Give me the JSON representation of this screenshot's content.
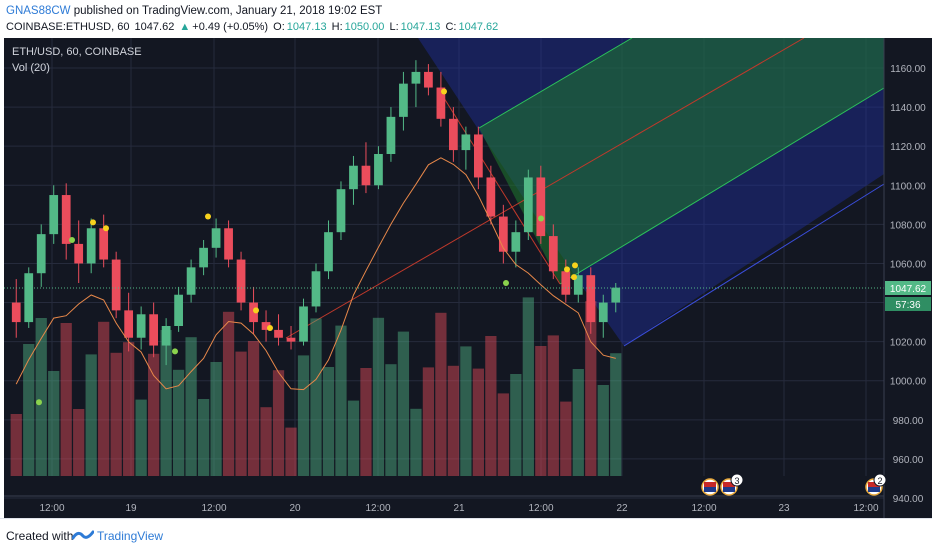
{
  "header": {
    "username": "GNAS88CW",
    "published_text": " published on TradingView.com, January 21, 2018 19:02 EST",
    "symbol": "COINBASE:ETHUSD, 60",
    "last": "1047.62",
    "change_arrow": "▲",
    "change": "+0.49 (+0.05%)",
    "o_label": "O:",
    "o_value": "1047.13",
    "h_label": "H:",
    "h_value": "1050.00",
    "l_label": "L:",
    "l_value": "1047.13",
    "c_label": "C:",
    "c_value": "1047.62"
  },
  "legend": {
    "symbol_line": "ETH/USD, 60, COINBASE",
    "volume_line": "Vol (20)"
  },
  "price_axis": {
    "labels": [
      "1160.00",
      "1140.00",
      "1120.00",
      "1100.00",
      "1080.00",
      "1060.00",
      "1040.00",
      "1020.00",
      "1000.00",
      "980.00",
      "960.00",
      "940.00"
    ],
    "last_price_tag": "1047.62",
    "countdown_tag": "57:36"
  },
  "time_axis": {
    "labels": [
      "12:00",
      "19",
      "12:00",
      "20",
      "12:00",
      "21",
      "12:00",
      "22",
      "12:00",
      "23",
      "12:00"
    ]
  },
  "event_badges": [
    "3",
    "2"
  ],
  "footer": {
    "created_with": "Created with",
    "brand": "TradingView"
  },
  "colors": {
    "background": "#131722",
    "up": "#53b987",
    "down": "#eb4d5c",
    "grid": "#262b3c",
    "last_price": "#53b987",
    "channel_blue": "#1e3bd6",
    "channel_green": "#1f8a3a",
    "ma_line": "#e8884a",
    "dots_yellow": "#f7d21d",
    "dots_green": "#8bd34d"
  },
  "chart_data": {
    "type": "candlestick",
    "symbol": "ETH/USD",
    "interval": "60",
    "exchange": "COINBASE",
    "ylim": [
      940,
      1170
    ],
    "price_ticks": [
      940,
      960,
      980,
      1000,
      1020,
      1040,
      1060,
      1080,
      1100,
      1120,
      1140,
      1160
    ],
    "last_price": 1047.62,
    "x_labels": [
      "12:00",
      "19",
      "12:00",
      "20",
      "12:00",
      "21",
      "12:00",
      "22",
      "12:00",
      "23",
      "12:00"
    ],
    "candles": [
      {
        "o": 1040,
        "h": 1052,
        "l": 1022,
        "c": 1030
      },
      {
        "o": 1030,
        "h": 1058,
        "l": 1027,
        "c": 1055
      },
      {
        "o": 1055,
        "h": 1080,
        "l": 1048,
        "c": 1075
      },
      {
        "o": 1075,
        "h": 1100,
        "l": 1070,
        "c": 1095
      },
      {
        "o": 1095,
        "h": 1101,
        "l": 1062,
        "c": 1070
      },
      {
        "o": 1070,
        "h": 1082,
        "l": 1050,
        "c": 1060
      },
      {
        "o": 1060,
        "h": 1083,
        "l": 1055,
        "c": 1078
      },
      {
        "o": 1078,
        "h": 1085,
        "l": 1058,
        "c": 1062
      },
      {
        "o": 1062,
        "h": 1066,
        "l": 1032,
        "c": 1036
      },
      {
        "o": 1036,
        "h": 1045,
        "l": 1015,
        "c": 1022
      },
      {
        "o": 1022,
        "h": 1038,
        "l": 1016,
        "c": 1034
      },
      {
        "o": 1034,
        "h": 1040,
        "l": 1012,
        "c": 1018
      },
      {
        "o": 1018,
        "h": 1032,
        "l": 1008,
        "c": 1028
      },
      {
        "o": 1028,
        "h": 1048,
        "l": 1025,
        "c": 1044
      },
      {
        "o": 1044,
        "h": 1062,
        "l": 1040,
        "c": 1058
      },
      {
        "o": 1058,
        "h": 1072,
        "l": 1054,
        "c": 1068
      },
      {
        "o": 1068,
        "h": 1083,
        "l": 1063,
        "c": 1078
      },
      {
        "o": 1078,
        "h": 1082,
        "l": 1058,
        "c": 1062
      },
      {
        "o": 1062,
        "h": 1066,
        "l": 1036,
        "c": 1040
      },
      {
        "o": 1040,
        "h": 1048,
        "l": 1024,
        "c": 1030
      },
      {
        "o": 1030,
        "h": 1036,
        "l": 1020,
        "c": 1026
      },
      {
        "o": 1026,
        "h": 1034,
        "l": 1018,
        "c": 1022
      },
      {
        "o": 1022,
        "h": 1028,
        "l": 1016,
        "c": 1020
      },
      {
        "o": 1020,
        "h": 1042,
        "l": 1018,
        "c": 1038
      },
      {
        "o": 1038,
        "h": 1060,
        "l": 1035,
        "c": 1056
      },
      {
        "o": 1056,
        "h": 1082,
        "l": 1052,
        "c": 1076
      },
      {
        "o": 1076,
        "h": 1102,
        "l": 1072,
        "c": 1098
      },
      {
        "o": 1098,
        "h": 1115,
        "l": 1090,
        "c": 1110
      },
      {
        "o": 1110,
        "h": 1122,
        "l": 1096,
        "c": 1100
      },
      {
        "o": 1100,
        "h": 1120,
        "l": 1098,
        "c": 1116
      },
      {
        "o": 1116,
        "h": 1140,
        "l": 1112,
        "c": 1135
      },
      {
        "o": 1135,
        "h": 1158,
        "l": 1128,
        "c": 1152
      },
      {
        "o": 1152,
        "h": 1164,
        "l": 1140,
        "c": 1158
      },
      {
        "o": 1158,
        "h": 1162,
        "l": 1146,
        "c": 1150
      },
      {
        "o": 1150,
        "h": 1158,
        "l": 1130,
        "c": 1134
      },
      {
        "o": 1134,
        "h": 1140,
        "l": 1112,
        "c": 1118
      },
      {
        "o": 1118,
        "h": 1130,
        "l": 1108,
        "c": 1126
      },
      {
        "o": 1126,
        "h": 1130,
        "l": 1098,
        "c": 1104
      },
      {
        "o": 1104,
        "h": 1110,
        "l": 1080,
        "c": 1084
      },
      {
        "o": 1084,
        "h": 1090,
        "l": 1060,
        "c": 1066
      },
      {
        "o": 1066,
        "h": 1082,
        "l": 1058,
        "c": 1076
      },
      {
        "o": 1076,
        "h": 1108,
        "l": 1072,
        "c": 1104
      },
      {
        "o": 1104,
        "h": 1110,
        "l": 1070,
        "c": 1074
      },
      {
        "o": 1074,
        "h": 1080,
        "l": 1052,
        "c": 1056
      },
      {
        "o": 1056,
        "h": 1062,
        "l": 1040,
        "c": 1044
      },
      {
        "o": 1044,
        "h": 1058,
        "l": 1040,
        "c": 1054
      },
      {
        "o": 1054,
        "h": 1058,
        "l": 1024,
        "c": 1030
      },
      {
        "o": 1030,
        "h": 1044,
        "l": 1022,
        "c": 1040
      },
      {
        "o": 1040,
        "h": 1050,
        "l": 1035,
        "c": 1047.62
      }
    ]
  }
}
